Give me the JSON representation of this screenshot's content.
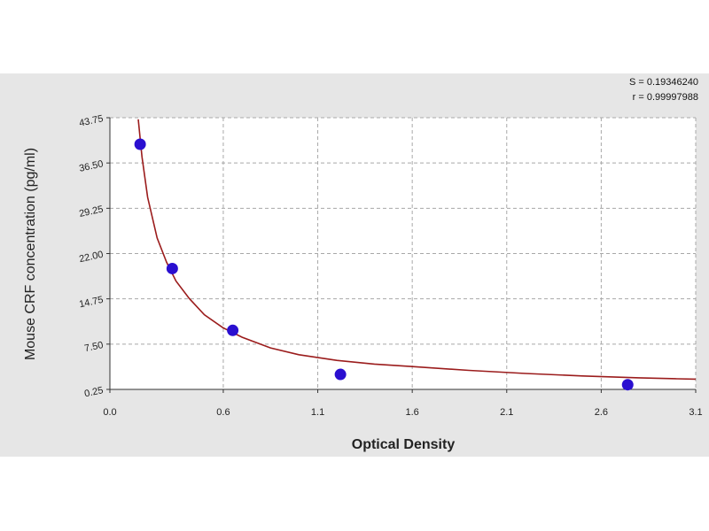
{
  "chart_data": {
    "type": "scatter",
    "xlabel": "Optical Density",
    "ylabel": "Mouse CRF concentration (pg/ml)",
    "xlim": [
      0.0,
      3.1
    ],
    "ylim": [
      0.25,
      43.75
    ],
    "x_ticks": [
      0.0,
      0.6,
      1.1,
      1.6,
      2.1,
      2.6,
      3.1
    ],
    "x_tick_labels": [
      "0.0",
      "0.6",
      "1.1",
      "1.6",
      "2.1",
      "2.6",
      "3.1"
    ],
    "y_ticks": [
      0.25,
      7.5,
      14.75,
      22.0,
      29.25,
      36.5,
      43.75
    ],
    "y_tick_labels": [
      "0.25",
      "7.50",
      "14.75",
      "22.00",
      "29.25",
      "36.50",
      "43.75"
    ],
    "grid": true,
    "points": [
      {
        "x": 0.16,
        "y": 39.5
      },
      {
        "x": 0.33,
        "y": 19.6
      },
      {
        "x": 0.65,
        "y": 9.7
      },
      {
        "x": 1.22,
        "y": 2.65
      },
      {
        "x": 2.74,
        "y": 1.0
      }
    ],
    "curve": {
      "x": [
        0.15,
        0.17,
        0.2,
        0.25,
        0.3,
        0.35,
        0.42,
        0.5,
        0.6,
        0.7,
        0.85,
        1.0,
        1.2,
        1.4,
        1.6,
        1.9,
        2.2,
        2.5,
        2.8,
        3.0,
        3.1
      ],
      "y": [
        43.5,
        37.5,
        31.0,
        24.5,
        20.6,
        17.6,
        14.8,
        12.2,
        10.1,
        8.6,
        6.9,
        5.8,
        4.9,
        4.3,
        3.9,
        3.3,
        2.8,
        2.4,
        2.1,
        1.95,
        1.9
      ]
    },
    "colors": {
      "curve": "#9b1c1c",
      "point": "#2a0fd0",
      "grid": "#a8a8a8",
      "plot_background": "#ffffff",
      "figure_background": "#e6e6e6"
    }
  },
  "stats": {
    "s_label": "S = ",
    "s_value": "0.19346240",
    "r_label": "r = ",
    "r_value": "0.99997988"
  }
}
